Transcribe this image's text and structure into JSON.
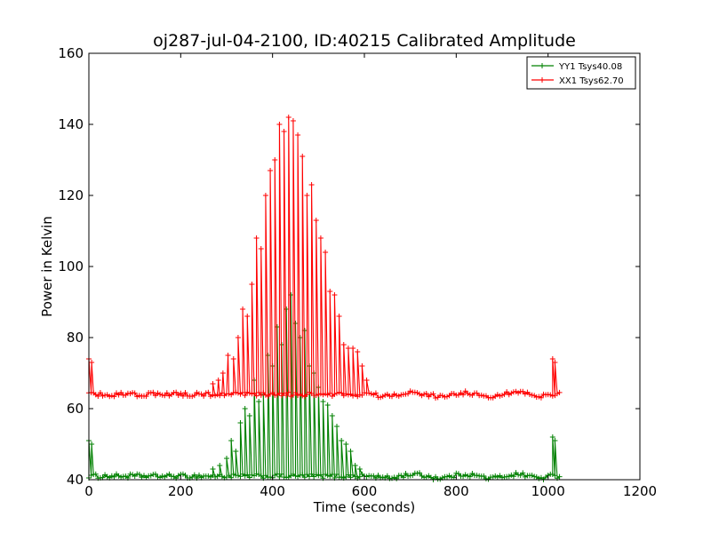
{
  "chart_data": {
    "type": "line",
    "title": "oj287-jul-04-2100, ID:40215 Calibrated Amplitude",
    "xlabel": "Time (seconds)",
    "ylabel": "Power in Kelvin",
    "xlim": [
      0,
      1200
    ],
    "ylim": [
      40,
      160
    ],
    "xticks": [
      "0",
      "200",
      "400",
      "600",
      "800",
      "1000",
      "1200"
    ],
    "yticks": [
      "40",
      "60",
      "80",
      "100",
      "120",
      "140",
      "160"
    ],
    "grid": false,
    "legend_position": "top-right",
    "series": [
      {
        "name": "YY1 Tsys40.08",
        "color": "#008000",
        "marker": "+",
        "baseline": 41,
        "spikes": [
          [
            0,
            51
          ],
          [
            6,
            50
          ],
          [
            270,
            43
          ],
          [
            285,
            44
          ],
          [
            300,
            46
          ],
          [
            310,
            51
          ],
          [
            320,
            48
          ],
          [
            330,
            56
          ],
          [
            340,
            60
          ],
          [
            350,
            58
          ],
          [
            360,
            68
          ],
          [
            370,
            62
          ],
          [
            380,
            64
          ],
          [
            390,
            75
          ],
          [
            400,
            72
          ],
          [
            410,
            83
          ],
          [
            420,
            78
          ],
          [
            430,
            88
          ],
          [
            440,
            92
          ],
          [
            450,
            84
          ],
          [
            460,
            80
          ],
          [
            470,
            82
          ],
          [
            480,
            72
          ],
          [
            490,
            70
          ],
          [
            500,
            66
          ],
          [
            510,
            62
          ],
          [
            520,
            61
          ],
          [
            530,
            58
          ],
          [
            540,
            55
          ],
          [
            550,
            51
          ],
          [
            560,
            50
          ],
          [
            570,
            48
          ],
          [
            580,
            44
          ],
          [
            590,
            43
          ],
          [
            1010,
            52
          ],
          [
            1015,
            51
          ]
        ]
      },
      {
        "name": "XX1 Tsys62.70",
        "color": "#ff0000",
        "marker": "+",
        "baseline": 64,
        "spikes": [
          [
            0,
            74
          ],
          [
            6,
            73
          ],
          [
            270,
            67
          ],
          [
            282,
            68
          ],
          [
            292,
            70
          ],
          [
            303,
            75
          ],
          [
            315,
            74
          ],
          [
            325,
            80
          ],
          [
            335,
            88
          ],
          [
            345,
            86
          ],
          [
            355,
            95
          ],
          [
            365,
            108
          ],
          [
            375,
            105
          ],
          [
            385,
            120
          ],
          [
            395,
            127
          ],
          [
            405,
            130
          ],
          [
            415,
            140
          ],
          [
            425,
            138
          ],
          [
            435,
            142
          ],
          [
            445,
            141
          ],
          [
            455,
            137
          ],
          [
            465,
            131
          ],
          [
            475,
            120
          ],
          [
            485,
            123
          ],
          [
            495,
            113
          ],
          [
            505,
            108
          ],
          [
            515,
            104
          ],
          [
            525,
            93
          ],
          [
            535,
            92
          ],
          [
            545,
            86
          ],
          [
            555,
            78
          ],
          [
            565,
            77
          ],
          [
            575,
            77
          ],
          [
            585,
            76
          ],
          [
            595,
            72
          ],
          [
            605,
            68
          ],
          [
            1010,
            74
          ],
          [
            1015,
            73
          ]
        ]
      }
    ]
  }
}
